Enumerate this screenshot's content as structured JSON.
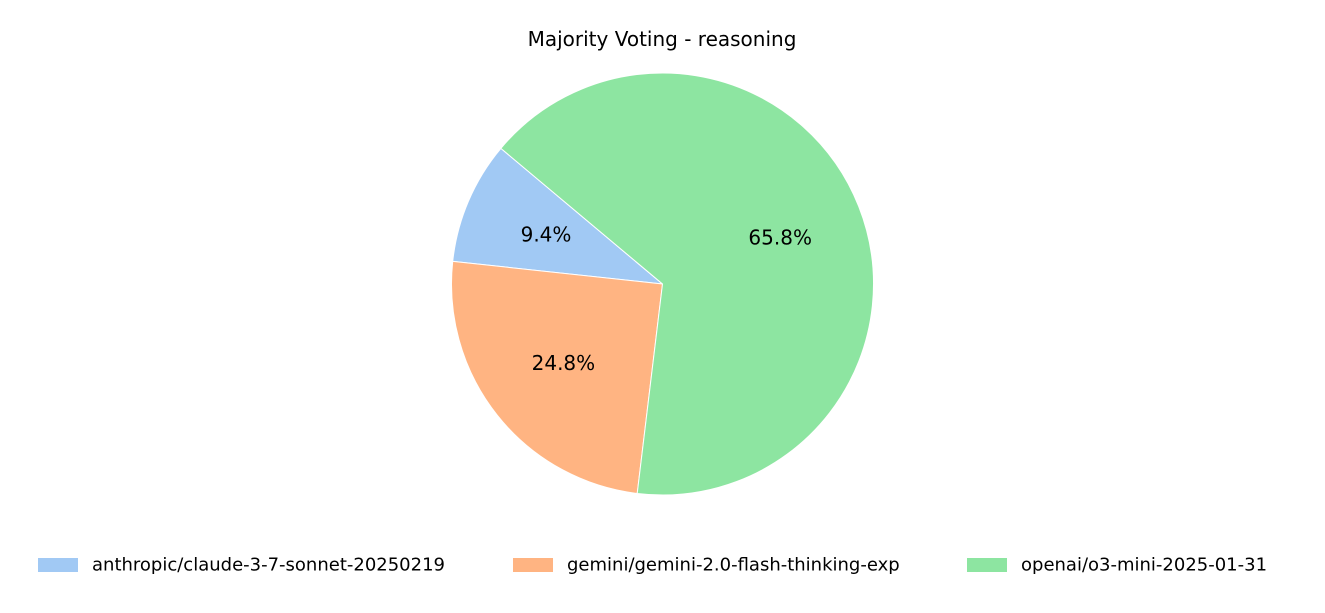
{
  "chart_data": {
    "type": "pie",
    "title": "Majority Voting - reasoning",
    "categories": [
      "anthropic/claude-3-7-sonnet-20250219",
      "gemini/gemini-2.0-flash-thinking-exp",
      "openai/o3-mini-2025-01-31"
    ],
    "values": [
      9.4,
      24.8,
      65.8
    ],
    "value_labels": [
      "9.4%",
      "24.8%",
      "65.8%"
    ],
    "colors": [
      "#a1c9f4",
      "#ffb482",
      "#8de5a1"
    ],
    "legend_position": "bottom",
    "start_angle_deg": 140,
    "direction": "counterclockwise"
  }
}
